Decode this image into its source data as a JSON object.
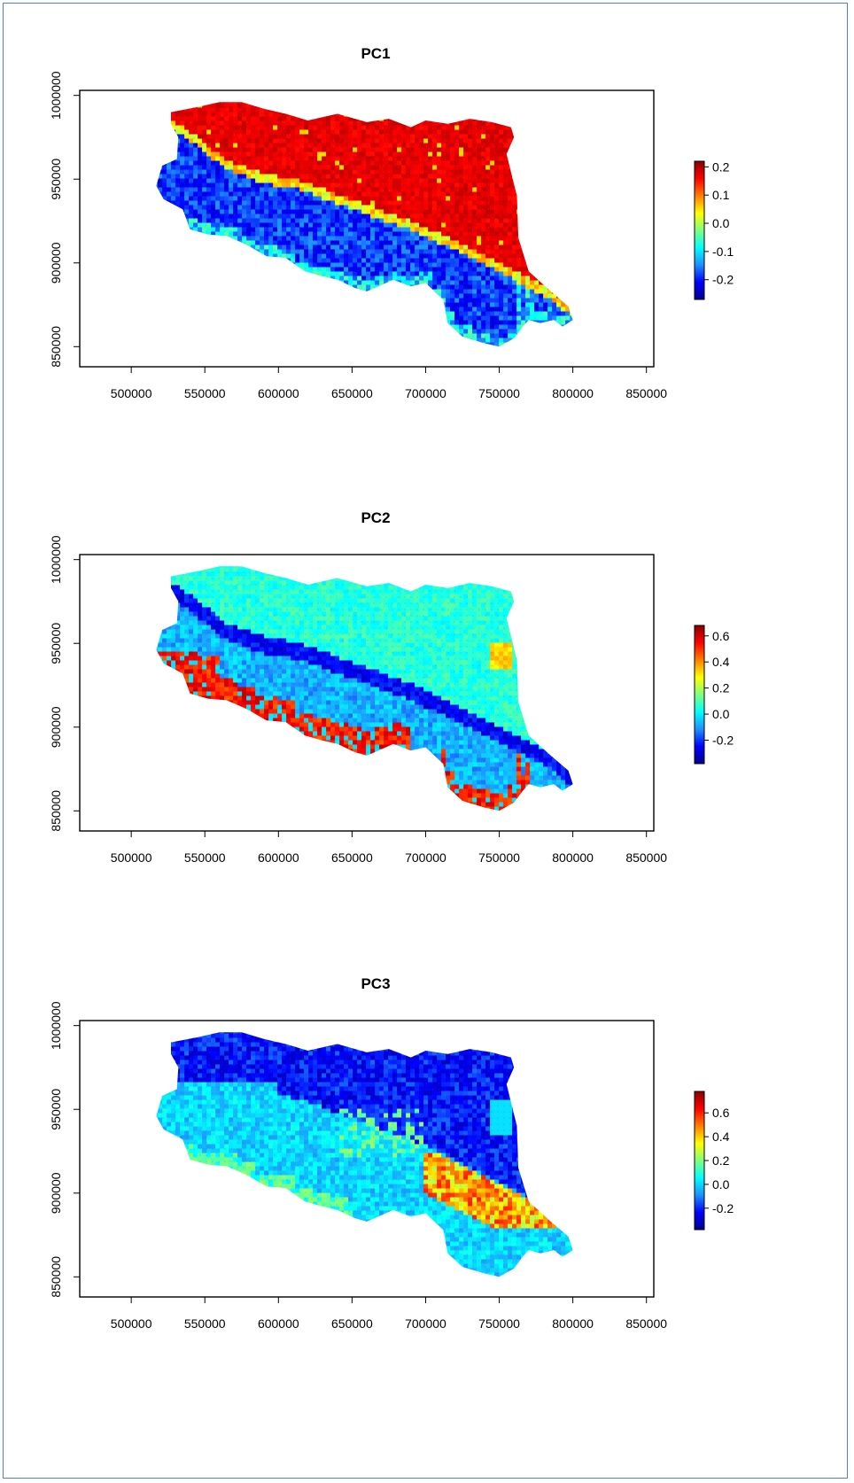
{
  "figure": {
    "border_color": "#4f81bd",
    "x_axis": {
      "range": [
        465000,
        855000
      ],
      "ticks": [
        500000,
        550000,
        600000,
        650000,
        700000,
        750000,
        800000,
        850000
      ]
    },
    "y_axis": {
      "range": [
        838000,
        1003000
      ],
      "ticks": [
        850000,
        900000,
        950000,
        1000000
      ]
    },
    "colormap": [
      "#00008b",
      "#0000ff",
      "#1e90ff",
      "#00ffff",
      "#7fff7f",
      "#ffff00",
      "#ff7f00",
      "#ff0000",
      "#8b0000"
    ],
    "panels": [
      {
        "title": "PC1",
        "legend_ticks": [
          {
            "value": 0.2,
            "label": "0.2"
          },
          {
            "value": 0.1,
            "label": "0.1"
          },
          {
            "value": 0.0,
            "label": "0.0"
          },
          {
            "value": -0.1,
            "label": "-0.1"
          },
          {
            "value": -0.2,
            "label": "-0.2"
          }
        ],
        "legend_range": [
          -0.27,
          0.22
        ],
        "pattern": "north-south split: plain in the north high (red), Apennine hills in the south low (blue)"
      },
      {
        "title": "PC2",
        "legend_ticks": [
          {
            "value": 0.6,
            "label": "0.6"
          },
          {
            "value": 0.4,
            "label": "0.4"
          },
          {
            "value": 0.2,
            "label": "0.2"
          },
          {
            "value": 0.0,
            "label": "0.0"
          },
          {
            "value": -0.2,
            "label": "-0.2"
          }
        ],
        "legend_range": [
          -0.38,
          0.68
        ],
        "pattern": "cyan plain, dark blue band along the foothills, red ridge along the southern edge"
      },
      {
        "title": "PC3",
        "legend_ticks": [
          {
            "value": 0.6,
            "label": "0.6"
          },
          {
            "value": 0.4,
            "label": "0.4"
          },
          {
            "value": 0.2,
            "label": "0.2"
          },
          {
            "value": 0.0,
            "label": "0.0"
          },
          {
            "value": -0.2,
            "label": "-0.2"
          }
        ],
        "legend_range": [
          -0.38,
          0.78
        ],
        "pattern": "dark blue in the north, light blue in the center, yellow/orange/red in the southeast"
      }
    ]
  }
}
